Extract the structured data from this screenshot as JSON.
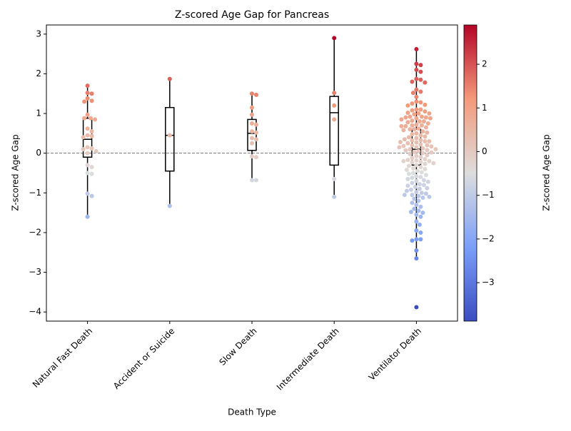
{
  "chart_data": {
    "type": "swarm-box",
    "title": "Z-scored Age Gap for Pancreas",
    "x_label": "Death Type",
    "y_label": "Z-scored Age Gap",
    "colorbar_label": "Z-scored Age Gap",
    "categories": [
      "Natural Fast Death",
      "Accident or Suicide",
      "Slow Death",
      "Intermediate Death",
      "Ventilator Death"
    ],
    "points": [
      [
        1.7,
        1.52,
        1.5,
        1.38,
        1.32,
        1.3,
        0.97,
        0.88,
        0.88,
        0.85,
        0.62,
        0.55,
        0.45,
        0.43,
        0.4,
        0.15,
        0.12,
        0.1,
        0.05,
        0.0,
        -0.3,
        -0.35,
        -0.5,
        -0.52,
        -1.02,
        -1.08,
        -1.6
      ],
      [
        1.87,
        0.45,
        -1.33
      ],
      [
        1.5,
        1.47,
        1.15,
        0.97,
        0.75,
        0.72,
        0.55,
        0.52,
        0.38,
        0.35,
        0.25,
        -0.08,
        -0.1,
        -0.68,
        -0.68
      ],
      [
        2.9,
        1.52,
        1.2,
        0.85,
        -0.65,
        -1.1
      ],
      [
        2.62,
        2.25,
        2.22,
        2.1,
        2.05,
        1.87,
        1.85,
        1.8,
        1.78,
        1.6,
        1.55,
        1.52,
        1.42,
        1.3,
        1.28,
        1.25,
        1.22,
        1.2,
        1.1,
        1.1,
        1.08,
        1.05,
        1.02,
        1.0,
        1.0,
        0.98,
        0.92,
        0.92,
        0.9,
        0.9,
        0.88,
        0.88,
        0.85,
        0.82,
        0.8,
        0.8,
        0.78,
        0.75,
        0.72,
        0.7,
        0.7,
        0.68,
        0.68,
        0.65,
        0.62,
        0.6,
        0.6,
        0.58,
        0.55,
        0.52,
        0.5,
        0.48,
        0.45,
        0.42,
        0.4,
        0.38,
        0.35,
        0.33,
        0.32,
        0.3,
        0.3,
        0.28,
        0.27,
        0.25,
        0.22,
        0.2,
        0.2,
        0.18,
        0.17,
        0.15,
        0.15,
        0.12,
        0.1,
        0.1,
        0.08,
        0.07,
        0.05,
        0.03,
        0.02,
        0.0,
        -0.02,
        -0.05,
        -0.07,
        -0.1,
        -0.12,
        -0.15,
        -0.17,
        -0.18,
        -0.2,
        -0.2,
        -0.22,
        -0.23,
        -0.25,
        -0.27,
        -0.3,
        -0.32,
        -0.35,
        -0.38,
        -0.4,
        -0.42,
        -0.45,
        -0.48,
        -0.5,
        -0.52,
        -0.55,
        -0.58,
        -0.6,
        -0.62,
        -0.65,
        -0.68,
        -0.7,
        -0.72,
        -0.75,
        -0.78,
        -0.8,
        -0.82,
        -0.85,
        -0.88,
        -0.9,
        -0.92,
        -0.95,
        -0.98,
        -1.0,
        -1.02,
        -1.05,
        -1.05,
        -1.08,
        -1.1,
        -1.12,
        -1.15,
        -1.2,
        -1.25,
        -1.3,
        -1.35,
        -1.4,
        -1.45,
        -1.48,
        -1.5,
        -1.55,
        -1.6,
        -1.72,
        -1.8,
        -1.95,
        -2.0,
        -2.17,
        -2.17,
        -2.2,
        -2.45,
        -2.65,
        -3.88
      ]
    ],
    "boxes": [
      {
        "whisker_low": -1.6,
        "q1": -0.1,
        "median": 0.35,
        "q3": 0.88,
        "whisker_high": 1.7
      },
      {
        "whisker_low": -1.33,
        "q1": -0.45,
        "median": 0.45,
        "q3": 1.15,
        "whisker_high": 1.87
      },
      {
        "whisker_low": -0.68,
        "q1": 0.07,
        "median": 0.5,
        "q3": 0.85,
        "whisker_high": 1.47
      },
      {
        "whisker_low": -1.1,
        "q1": -0.3,
        "median": 1.02,
        "q3": 1.43,
        "whisker_high": 2.9
      },
      {
        "whisker_low": -2.65,
        "q1": -0.3,
        "median": 0.1,
        "q3": 0.6,
        "whisker_high": 2.62
      }
    ],
    "reference_line": 0,
    "ylim": [
      -4.23,
      3.23
    ],
    "yticks": [
      {
        "value": -4,
        "label": "−4"
      },
      {
        "value": -3,
        "label": "−3"
      },
      {
        "value": -2,
        "label": "−2"
      },
      {
        "value": -1,
        "label": "−1"
      },
      0,
      1,
      2,
      3
    ],
    "colormap": [
      "#3b4cc0",
      "#7b9ff9",
      "#dddddd",
      "#f49a7b",
      "#b40426"
    ],
    "clim": [
      -3.88,
      2.9
    ],
    "colorbar_ticks": [
      {
        "value": -3,
        "label": "−3"
      },
      {
        "value": -2,
        "label": "−2"
      },
      {
        "value": -1,
        "label": "−1"
      },
      0,
      1,
      2
    ]
  }
}
